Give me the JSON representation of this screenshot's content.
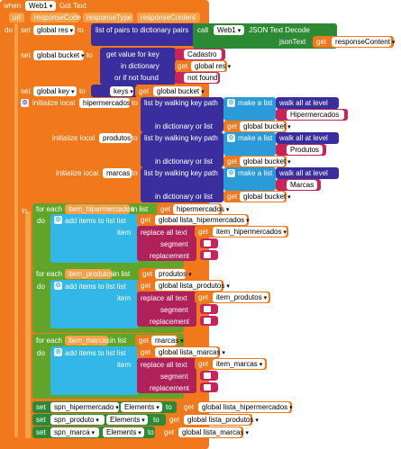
{
  "event": {
    "when": "when",
    "component": "Web1",
    "event_name": "Got Text",
    "do": "do",
    "params": [
      "url",
      "responseCode",
      "responseType",
      "responseContent"
    ]
  },
  "b1": {
    "set": "set",
    "var": "global res",
    "to": "to",
    "dict_label": "list of pairs to dictionary  pairs",
    "call": "call",
    "web": "Web1",
    "method": "JSON Text Decode",
    "json_text": "jsonText",
    "get": "get",
    "get_var": "responseContent"
  },
  "b2": {
    "set": "set",
    "var": "global bucket",
    "to": "to",
    "get_value": "get value for key",
    "key": "Cadastro",
    "in_dict": "in dictionary",
    "get": "get",
    "dict_var": "global res",
    "if_not_found": "or if not found",
    "not_found": "not found"
  },
  "b3": {
    "set": "set",
    "var": "global key",
    "to": "to",
    "keys": "keys",
    "get": "get",
    "bucket": "global bucket"
  },
  "b4": {
    "init": "initialize local",
    "var1": "hipermercados",
    "var2": "produtos",
    "var3": "marcas",
    "to": "to",
    "list_walk": "list by walking key path",
    "make_list": "make a list",
    "walk_all": "walk all at level",
    "in_dict": "in dictionary or list",
    "get": "get",
    "bucket": "global bucket",
    "s1": "Hipermercados",
    "s2": "Produtos",
    "s3": "Marcas",
    "in": "in"
  },
  "loops": [
    {
      "for_each": "for each",
      "item": "item_hipermercados",
      "in_list": "in list",
      "list_var": "hipermercados",
      "add_items": "add items to list  list",
      "target": "global lista_hipermercados",
      "replace": "replace all text",
      "item_get": "item_hipermercados"
    },
    {
      "for_each": "for each",
      "item": "item_produtos",
      "in_list": "in list",
      "list_var": "produtos",
      "add_items": "add items to list  list",
      "target": "global lista_produtos",
      "replace": "replace all text",
      "item_get": "item_produtos"
    },
    {
      "for_each": "for each",
      "item": "item_marcas",
      "in_list": "in list",
      "list_var": "marcas",
      "add_items": "add items to list  list",
      "target": "global lista_marcas",
      "replace": "replace all text",
      "item_get": "item_marcas"
    }
  ],
  "loop_labels": {
    "do": "do",
    "item": "item",
    "get": "get",
    "segment": "segment",
    "replacement": "replacement"
  },
  "sets": [
    {
      "set": "set",
      "comp": "spn_hipermercado",
      "prop": "Elements",
      "to": "to",
      "get": "get",
      "var": "global lista_hipermercados"
    },
    {
      "set": "set",
      "comp": "spn_produto",
      "prop": "Elements",
      "to": "to",
      "get": "get",
      "var": "global lista_produtos"
    },
    {
      "set": "set",
      "comp": "spn_marca",
      "prop": "Elements",
      "to": "to",
      "get": "get",
      "var": "global lista_marcas"
    }
  ],
  "colors": {
    "event": "#f1791c",
    "variables": "#f1791c",
    "dictionary": "#3a2e9e",
    "lists": "#2a9ad8",
    "text": "#c6245a",
    "controls": "#60a52a",
    "component": "#2d8a34"
  }
}
